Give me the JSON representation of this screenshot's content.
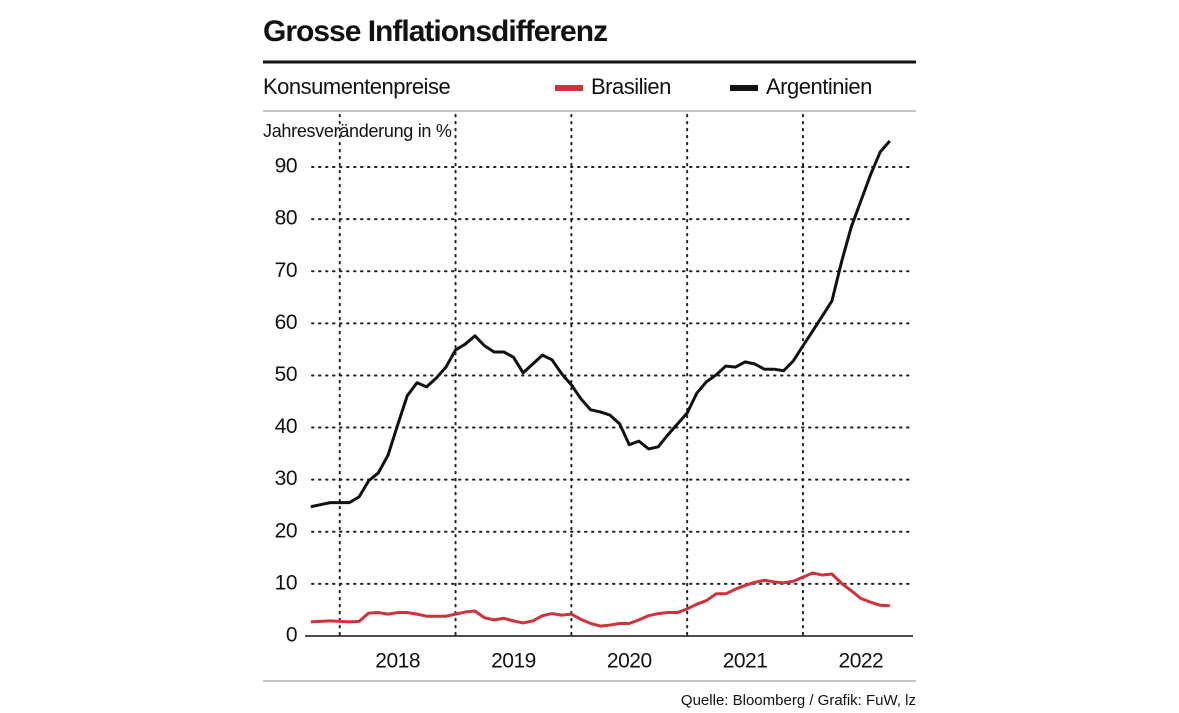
{
  "chart_data": {
    "type": "line",
    "title": "Grosse Inflationsdifferenz",
    "subtitle": "Konsumentenpreise",
    "y_label": "Jahresveränderung in %",
    "source": "Quelle: Bloomberg / Grafik: FuW, lz",
    "x": [
      2017.75,
      2017.833,
      2017.917,
      2018,
      2018.083,
      2018.167,
      2018.25,
      2018.333,
      2018.417,
      2018.5,
      2018.583,
      2018.667,
      2018.75,
      2018.833,
      2018.917,
      2019,
      2019.083,
      2019.167,
      2019.25,
      2019.333,
      2019.417,
      2019.5,
      2019.583,
      2019.667,
      2019.75,
      2019.833,
      2019.917,
      2020,
      2020.083,
      2020.167,
      2020.25,
      2020.333,
      2020.417,
      2020.5,
      2020.583,
      2020.667,
      2020.75,
      2020.833,
      2020.917,
      2021,
      2021.083,
      2021.167,
      2021.25,
      2021.333,
      2021.417,
      2021.5,
      2021.583,
      2021.667,
      2021.75,
      2021.833,
      2021.917,
      2022,
      2022.083,
      2022.167,
      2022.25,
      2022.333,
      2022.417,
      2022.5,
      2022.583,
      2022.667,
      2022.75
    ],
    "series": [
      {
        "name": "Brasilien",
        "color": "#d0323c",
        "values": [
          2.7,
          2.8,
          2.9,
          2.8,
          2.7,
          2.8,
          4.4,
          4.5,
          4.2,
          4.5,
          4.5,
          4.2,
          3.8,
          3.8,
          3.8,
          4.2,
          4.6,
          4.8,
          3.5,
          3.1,
          3.4,
          2.9,
          2.5,
          2.9,
          3.9,
          4.3,
          4.0,
          4.2,
          3.2,
          2.4,
          1.9,
          2.1,
          2.4,
          2.4,
          3.1,
          3.9,
          4.3,
          4.5,
          4.5,
          5.2,
          6.1,
          6.8,
          8.1,
          8.1,
          9.0,
          9.7,
          10.3,
          10.7,
          10.4,
          10.2,
          10.5,
          11.3,
          12.1,
          11.7,
          11.9,
          10.1,
          8.7,
          7.2,
          6.5,
          5.9,
          5.8
        ]
      },
      {
        "name": "Argentinien",
        "color": "#111111",
        "values": [
          24.8,
          25.2,
          25.6,
          25.6,
          25.6,
          26.7,
          29.8,
          31.3,
          34.7,
          40.5,
          46.1,
          48.6,
          47.8,
          49.5,
          51.6,
          54.9,
          56.0,
          57.6,
          55.7,
          54.5,
          54.5,
          53.5,
          50.5,
          52.2,
          53.9,
          53.0,
          50.3,
          48.2,
          45.5,
          43.4,
          43.0,
          42.4,
          40.7,
          36.7,
          37.4,
          35.9,
          36.3,
          38.6,
          40.7,
          42.8,
          46.6,
          48.8,
          50.1,
          51.8,
          51.6,
          52.6,
          52.2,
          51.2,
          51.2,
          50.9,
          52.8,
          55.7,
          58.5,
          61.4,
          64.3,
          71.8,
          78.5,
          83.5,
          88.5,
          92.9,
          95.0
        ]
      }
    ],
    "xlim": [
      2017.7,
      2022.95
    ],
    "xticks": [
      2018,
      2019,
      2020,
      2021,
      2022
    ],
    "ylim": [
      0,
      100
    ],
    "yticks": [
      0,
      10,
      20,
      30,
      40,
      50,
      60,
      70,
      80,
      90
    ],
    "grid": true,
    "legend": "top-right"
  }
}
